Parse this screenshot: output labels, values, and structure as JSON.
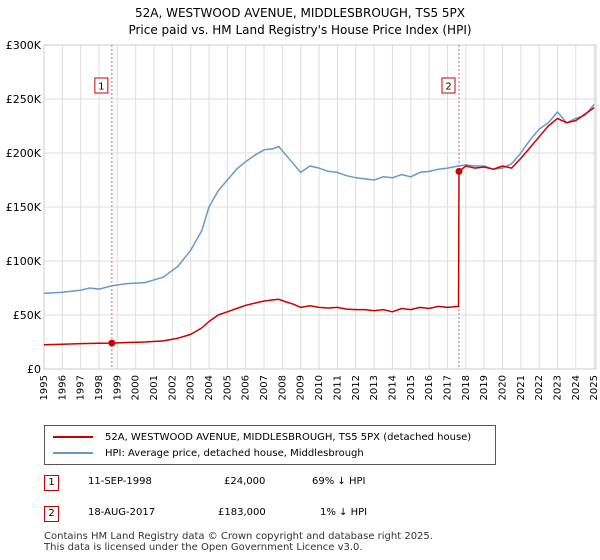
{
  "title_line1": "52A, WESTWOOD AVENUE, MIDDLESBROUGH, TS5 5PX",
  "title_line2": "Price paid vs. HM Land Registry's House Price Index (HPI)",
  "colors": {
    "property": "#cc0000",
    "hpi": "#6699cc",
    "grid": "#dddddd",
    "marker_line": "#cc0000"
  },
  "chart_data": {
    "type": "line",
    "title": "52A, WESTWOOD AVENUE, MIDDLESBROUGH, TS5 5PX",
    "subtitle": "Price paid vs. HM Land Registry's House Price Index (HPI)",
    "xlabel": "",
    "ylabel": "",
    "xlim": [
      1995.0,
      2025.1
    ],
    "ylim": [
      0,
      300000
    ],
    "x_ticks": [
      1995,
      1996,
      1997,
      1998,
      1999,
      2000,
      2001,
      2002,
      2003,
      2004,
      2005,
      2006,
      2007,
      2008,
      2009,
      2010,
      2011,
      2012,
      2013,
      2014,
      2015,
      2016,
      2017,
      2018,
      2019,
      2020,
      2021,
      2022,
      2023,
      2024,
      2025
    ],
    "y_ticks": [
      {
        "value": 0,
        "label": "£0"
      },
      {
        "value": 50000,
        "label": "£50K"
      },
      {
        "value": 100000,
        "label": "£100K"
      },
      {
        "value": 150000,
        "label": "£150K"
      },
      {
        "value": 200000,
        "label": "£200K"
      },
      {
        "value": 250000,
        "label": "£250K"
      },
      {
        "value": 300000,
        "label": "£300K"
      }
    ],
    "grid": true,
    "series": [
      {
        "name": "52A, WESTWOOD AVENUE, MIDDLESBROUGH, TS5 5PX (detached house)",
        "color": "#cc0000",
        "x": [
          1995.0,
          1996.0,
          1997.0,
          1998.0,
          1998.7,
          1999.5,
          2000.5,
          2001.5,
          2002.3,
          2003.0,
          2003.6,
          2004.0,
          2004.5,
          2005.0,
          2005.5,
          2006.0,
          2006.5,
          2007.0,
          2007.5,
          2007.8,
          2008.2,
          2008.6,
          2009.0,
          2009.5,
          2010.0,
          2010.5,
          2011.0,
          2011.5,
          2012.0,
          2012.5,
          2013.0,
          2013.5,
          2014.0,
          2014.5,
          2015.0,
          2015.5,
          2016.0,
          2016.5,
          2017.0,
          2017.6,
          2017.63,
          2018.0,
          2018.5,
          2019.0,
          2019.5,
          2020.0,
          2020.5,
          2021.0,
          2021.5,
          2022.0,
          2022.5,
          2023.0,
          2023.5,
          2024.0,
          2024.5,
          2025.0
        ],
        "y": [
          22500,
          23000,
          23500,
          23800,
          24000,
          24500,
          25000,
          26000,
          28500,
          32000,
          38000,
          44000,
          50000,
          53000,
          56000,
          59000,
          61000,
          63000,
          64000,
          64500,
          62000,
          60000,
          57000,
          58500,
          57000,
          56500,
          57000,
          55500,
          55000,
          55000,
          54000,
          55000,
          53000,
          56000,
          55000,
          57000,
          56000,
          58000,
          57000,
          58000,
          183000,
          188000,
          186000,
          187000,
          185000,
          188000,
          186000,
          195000,
          205000,
          215000,
          225000,
          232000,
          228000,
          230000,
          236000,
          242000
        ]
      },
      {
        "name": "HPI: Average price, detached house, Middlesbrough",
        "color": "#6699cc",
        "x": [
          1995.0,
          1996.0,
          1997.0,
          1997.5,
          1998.0,
          1998.7,
          1999.5,
          2000.5,
          2001.5,
          2002.3,
          2003.0,
          2003.6,
          2004.0,
          2004.5,
          2005.0,
          2005.5,
          2006.0,
          2006.5,
          2007.0,
          2007.5,
          2007.8,
          2008.2,
          2008.6,
          2009.0,
          2009.5,
          2010.0,
          2010.5,
          2011.0,
          2011.5,
          2012.0,
          2012.5,
          2013.0,
          2013.5,
          2014.0,
          2014.5,
          2015.0,
          2015.5,
          2016.0,
          2016.5,
          2017.0,
          2017.6,
          2018.0,
          2018.5,
          2019.0,
          2019.5,
          2020.0,
          2020.5,
          2021.0,
          2021.5,
          2022.0,
          2022.5,
          2023.0,
          2023.5,
          2024.0,
          2024.5,
          2025.0
        ],
        "y": [
          70000,
          71000,
          73000,
          75000,
          74000,
          77000,
          79000,
          80000,
          85000,
          95000,
          110000,
          128000,
          150000,
          165000,
          175000,
          185000,
          192000,
          198000,
          203000,
          204000,
          206000,
          198000,
          190000,
          182000,
          188000,
          186000,
          183000,
          182000,
          179000,
          177000,
          176000,
          175000,
          178000,
          177000,
          180000,
          178000,
          182000,
          183000,
          185000,
          186000,
          188000,
          189000,
          188000,
          188000,
          185000,
          186000,
          190000,
          200000,
          212000,
          222000,
          228000,
          238000,
          228000,
          232000,
          235000,
          245000
        ]
      }
    ],
    "annotations": [
      {
        "label": "1",
        "x": 1998.7,
        "price": 24000
      },
      {
        "label": "2",
        "x": 2017.63,
        "price": 183000
      }
    ]
  },
  "legend": {
    "property": "52A, WESTWOOD AVENUE, MIDDLESBROUGH, TS5 5PX (detached house)",
    "hpi": "HPI: Average price, detached house, Middlesbrough"
  },
  "sales": [
    {
      "num": "1",
      "date": "11-SEP-1998",
      "price": "£24,000",
      "hpi": "69% ↓ HPI"
    },
    {
      "num": "2",
      "date": "18-AUG-2017",
      "price": "£183,000",
      "hpi": "1% ↓ HPI"
    }
  ],
  "footer_line1": "Contains HM Land Registry data © Crown copyright and database right 2025.",
  "footer_line2": "This data is licensed under the Open Government Licence v3.0."
}
